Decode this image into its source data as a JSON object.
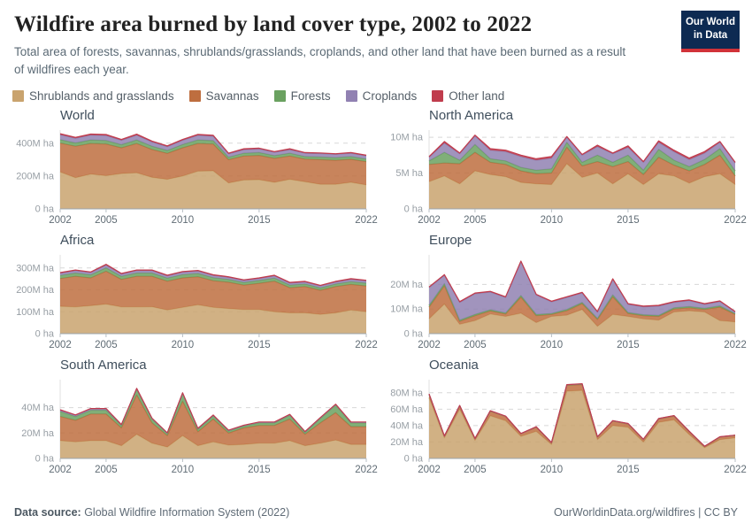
{
  "header": {
    "title": "Wildfire area burned by land cover type, 2002 to 2022",
    "subtitle": "Total area of forests, savannas, shrublands/grasslands, croplands, and other land that have been burned as a result of wildfires each year."
  },
  "logo": {
    "line1": "Our World",
    "line2": "in Data",
    "bg_color": "#0d2a52",
    "stripe_color": "#d13239"
  },
  "legend": {
    "items": [
      {
        "label": "Shrublands and grasslands",
        "color": "#C9A36E"
      },
      {
        "label": "Savannas",
        "color": "#BE6E3F"
      },
      {
        "label": "Forests",
        "color": "#6AA160"
      },
      {
        "label": "Croplands",
        "color": "#9181B2"
      },
      {
        "label": "Other land",
        "color": "#C03C4D"
      }
    ]
  },
  "footer": {
    "left_bold": "Data source:",
    "left_rest": " Global Wildfire Information System (2022)",
    "right": "OurWorldinData.org/wildfires | CC BY"
  },
  "chart_data": {
    "type": "area",
    "stacked": true,
    "unit": "M ha",
    "grid": "dashed horizontal",
    "legend_position": "top",
    "series_order": [
      "shrublands",
      "savannas",
      "forests",
      "croplands",
      "other_land"
    ],
    "series_labels": {
      "shrublands": "Shrublands and grasslands",
      "savannas": "Savannas",
      "forests": "Forests",
      "croplands": "Croplands",
      "other_land": "Other land"
    },
    "colors": {
      "shrublands": "#C9A36E",
      "savannas": "#BE6E3F",
      "forests": "#6AA160",
      "croplands": "#9181B2",
      "other_land": "#C03C4D"
    },
    "years": [
      2002,
      2003,
      2004,
      2005,
      2006,
      2007,
      2008,
      2009,
      2010,
      2011,
      2012,
      2013,
      2014,
      2015,
      2016,
      2017,
      2018,
      2019,
      2020,
      2021,
      2022
    ],
    "charts": [
      {
        "id": "world",
        "title": "World",
        "ymax": 480,
        "yticks": [
          {
            "v": 0,
            "label": "0 ha"
          },
          {
            "v": 200,
            "label": "200M ha"
          },
          {
            "v": 400,
            "label": "400M ha"
          }
        ],
        "xticks": [
          {
            "v": 2002,
            "label": "2002"
          },
          {
            "v": 2005,
            "label": "2005"
          },
          {
            "v": 2010,
            "label": "2010"
          },
          {
            "v": 2015,
            "label": "2015"
          },
          {
            "v": 2022,
            "label": "2022"
          }
        ],
        "series": {
          "shrublands": [
            225,
            190,
            212,
            202,
            215,
            220,
            192,
            180,
            200,
            230,
            232,
            158,
            176,
            178,
            162,
            180,
            165,
            150,
            150,
            162,
            146
          ],
          "savannas": [
            175,
            192,
            186,
            193,
            157,
            178,
            170,
            158,
            172,
            168,
            163,
            142,
            146,
            148,
            146,
            142,
            138,
            150,
            146,
            140,
            142
          ],
          "forests": [
            22,
            20,
            22,
            22,
            19,
            22,
            20,
            18,
            20,
            22,
            21,
            15,
            17,
            17,
            16,
            17,
            16,
            16,
            16,
            17,
            16
          ],
          "croplands": [
            30,
            28,
            30,
            30,
            27,
            29,
            26,
            23,
            26,
            28,
            27,
            20,
            22,
            22,
            21,
            22,
            20,
            21,
            20,
            20,
            19
          ],
          "other_land": [
            6,
            6,
            6,
            6,
            5,
            6,
            5,
            5,
            5,
            6,
            5,
            4,
            5,
            5,
            4,
            5,
            4,
            4,
            4,
            4,
            4
          ]
        }
      },
      {
        "id": "north-america",
        "title": "North America",
        "ymax": 11,
        "yticks": [
          {
            "v": 0,
            "label": "0 ha"
          },
          {
            "v": 5,
            "label": "5M ha"
          },
          {
            "v": 10,
            "label": "10M ha"
          }
        ],
        "xticks": [
          {
            "v": 2002,
            "label": "2002"
          },
          {
            "v": 2005,
            "label": "2005"
          },
          {
            "v": 2010,
            "label": "2010"
          },
          {
            "v": 2015,
            "label": "2015"
          },
          {
            "v": 2022,
            "label": "2022"
          }
        ],
        "series": {
          "shrublands": [
            3.8,
            4.6,
            3.5,
            5.3,
            4.8,
            4.5,
            3.7,
            3.5,
            3.4,
            6.3,
            4.4,
            5.0,
            3.5,
            4.9,
            3.4,
            4.9,
            4.6,
            3.6,
            4.5,
            4.9,
            3.4
          ],
          "savannas": [
            2.4,
            1.8,
            2.8,
            2.6,
            1.7,
            1.7,
            1.6,
            1.4,
            1.6,
            2.3,
            1.6,
            1.6,
            2.4,
            1.7,
            1.4,
            2.3,
            1.5,
            1.7,
            1.7,
            2.6,
            1.2
          ],
          "forests": [
            0.5,
            1.5,
            0.5,
            1.1,
            0.5,
            0.5,
            0.5,
            0.5,
            0.6,
            0.7,
            0.5,
            0.9,
            0.6,
            0.9,
            0.6,
            1.1,
            0.7,
            0.6,
            0.7,
            0.9,
            0.7
          ],
          "croplands": [
            0.5,
            1.3,
            0.9,
            1.2,
            1.2,
            1.3,
            1.5,
            1.4,
            1.5,
            0.7,
            1.0,
            1.2,
            1.2,
            1.1,
            1.1,
            1.0,
            1.2,
            1.0,
            0.9,
            0.9,
            1.1
          ],
          "other_land": [
            0.1,
            0.2,
            0.1,
            0.1,
            0.2,
            0.2,
            0.2,
            0.2,
            0.2,
            0.1,
            0.1,
            0.2,
            0.1,
            0.2,
            0.1,
            0.2,
            0.2,
            0.2,
            0.2,
            0.1,
            0.1
          ]
        }
      },
      {
        "id": "africa",
        "title": "Africa",
        "ymax": 360,
        "yticks": [
          {
            "v": 0,
            "label": "0 ha"
          },
          {
            "v": 100,
            "label": "100M ha"
          },
          {
            "v": 200,
            "label": "200M ha"
          },
          {
            "v": 300,
            "label": "300M ha"
          }
        ],
        "xticks": [
          {
            "v": 2002,
            "label": "2002"
          },
          {
            "v": 2005,
            "label": "2005"
          },
          {
            "v": 2010,
            "label": "2010"
          },
          {
            "v": 2015,
            "label": "2015"
          },
          {
            "v": 2022,
            "label": "2022"
          }
        ],
        "series": {
          "shrublands": [
            125,
            122,
            128,
            135,
            122,
            122,
            123,
            108,
            120,
            132,
            120,
            115,
            110,
            110,
            100,
            95,
            95,
            88,
            95,
            108,
            100
          ],
          "savannas": [
            127,
            140,
            127,
            150,
            126,
            140,
            139,
            132,
            135,
            128,
            122,
            120,
            112,
            120,
            140,
            115,
            120,
            110,
            120,
            117,
            118
          ],
          "forests": [
            14,
            15,
            14,
            16,
            14,
            15,
            15,
            14,
            15,
            15,
            14,
            13,
            12,
            13,
            14,
            12,
            12,
            11,
            12,
            13,
            13
          ],
          "croplands": [
            10,
            11,
            10,
            12,
            10,
            11,
            11,
            10,
            11,
            11,
            10,
            9,
            9,
            9,
            10,
            9,
            9,
            9,
            9,
            10,
            10
          ],
          "other_land": [
            3,
            3,
            3,
            4,
            3,
            3,
            3,
            3,
            3,
            3,
            3,
            3,
            3,
            3,
            3,
            3,
            3,
            3,
            3,
            3,
            3
          ]
        }
      },
      {
        "id": "europe",
        "title": "Europe",
        "ymax": 32,
        "yticks": [
          {
            "v": 0,
            "label": "0 ha"
          },
          {
            "v": 10,
            "label": "10M ha"
          },
          {
            "v": 20,
            "label": "20M ha"
          }
        ],
        "xticks": [
          {
            "v": 2002,
            "label": "2002"
          },
          {
            "v": 2005,
            "label": "2005"
          },
          {
            "v": 2010,
            "label": "2010"
          },
          {
            "v": 2015,
            "label": "2015"
          },
          {
            "v": 2022,
            "label": "2022"
          }
        ],
        "series": {
          "shrublands": [
            6,
            12,
            3.8,
            5.3,
            8,
            7,
            8.3,
            4.5,
            7,
            7.5,
            9.8,
            3,
            7.8,
            7,
            6,
            5.5,
            8.8,
            9.3,
            8.8,
            5.3,
            4.8
          ],
          "savannas": [
            4.8,
            7.5,
            1.2,
            2,
            1.2,
            1,
            6.5,
            2.8,
            0.8,
            1.8,
            2.4,
            2.8,
            7.2,
            1.2,
            1.3,
            1.5,
            1.2,
            1.2,
            1.0,
            5.5,
            3.0
          ],
          "forests": [
            0.7,
            0.8,
            0.5,
            0.5,
            0.5,
            0.4,
            0.7,
            0.5,
            0.4,
            0.5,
            0.5,
            0.4,
            0.8,
            0.4,
            0.4,
            0.4,
            0.5,
            0.5,
            0.5,
            0.5,
            0.4
          ],
          "croplands": [
            7.2,
            3.4,
            7.2,
            8.4,
            7.2,
            6.3,
            13.7,
            7.9,
            4.7,
            4.9,
            3.8,
            2.5,
            6.2,
            3.3,
            3.2,
            3.8,
            2.2,
            2.4,
            1.6,
            1.7,
            0.6
          ],
          "other_land": [
            0.3,
            0.3,
            0.3,
            0.3,
            0.3,
            0.3,
            0.3,
            0.3,
            0.3,
            0.3,
            0.3,
            0.3,
            0.3,
            0.3,
            0.3,
            0.3,
            0.3,
            0.3,
            0.3,
            0.3,
            0.2
          ]
        }
      },
      {
        "id": "south-america",
        "title": "South America",
        "ymax": 62,
        "yticks": [
          {
            "v": 0,
            "label": "0 ha"
          },
          {
            "v": 20,
            "label": "20M ha"
          },
          {
            "v": 40,
            "label": "40M ha"
          }
        ],
        "xticks": [
          {
            "v": 2002,
            "label": "2002"
          },
          {
            "v": 2005,
            "label": "2005"
          },
          {
            "v": 2010,
            "label": "2010"
          },
          {
            "v": 2015,
            "label": "2015"
          },
          {
            "v": 2022,
            "label": "2022"
          }
        ],
        "series": {
          "shrublands": [
            14,
            13,
            14,
            14,
            10,
            19,
            12,
            9,
            18,
            10,
            13,
            10.5,
            11,
            12,
            12,
            14,
            10,
            12,
            14.5,
            11,
            11
          ],
          "savannas": [
            19,
            17,
            21,
            21,
            14,
            31,
            16,
            9,
            27,
            11,
            18,
            9.5,
            13,
            14,
            14,
            17,
            9,
            16,
            21.5,
            14,
            14
          ],
          "forests": [
            4,
            3,
            3,
            3,
            2,
            4.5,
            3,
            1.5,
            6,
            2,
            2.5,
            1.5,
            1.5,
            2,
            2,
            3,
            1.5,
            3.5,
            6,
            3,
            3
          ],
          "croplands": [
            1,
            1,
            1,
            1,
            0.5,
            0.5,
            0.5,
            0.5,
            0.5,
            0.5,
            0.5,
            0.5,
            0.5,
            0.5,
            0.5,
            0.5,
            0.5,
            0.5,
            0.5,
            0.5,
            0.5
          ],
          "other_land": [
            0.3,
            0.3,
            0.3,
            0.3,
            0.2,
            0.2,
            0.2,
            0.2,
            0.2,
            0.2,
            0.2,
            0.2,
            0.2,
            0.2,
            0.2,
            0.2,
            0.2,
            0.2,
            0.2,
            0.2,
            0.2
          ]
        }
      },
      {
        "id": "oceania",
        "title": "Oceania",
        "ymax": 96,
        "yticks": [
          {
            "v": 0,
            "label": "0 ha"
          },
          {
            "v": 20,
            "label": "20M ha"
          },
          {
            "v": 40,
            "label": "40M ha"
          },
          {
            "v": 60,
            "label": "60M ha"
          },
          {
            "v": 80,
            "label": "80M ha"
          }
        ],
        "xticks": [
          {
            "v": 2002,
            "label": "2002"
          },
          {
            "v": 2005,
            "label": "2005"
          },
          {
            "v": 2010,
            "label": "2010"
          },
          {
            "v": 2015,
            "label": "2015"
          },
          {
            "v": 2022,
            "label": "2022"
          }
        ],
        "series": {
          "shrublands": [
            74,
            25,
            60,
            22,
            52,
            46,
            27,
            33,
            17,
            82,
            83,
            23,
            40,
            38,
            20,
            44,
            47,
            29,
            13,
            23,
            25
          ],
          "savannas": [
            4,
            2,
            4,
            2,
            5.5,
            5,
            3,
            5,
            2,
            7,
            7,
            3,
            5.5,
            4,
            3,
            4,
            4.5,
            3.5,
            1.5,
            3,
            3
          ],
          "forests": [
            0.3,
            0.2,
            0.3,
            0.2,
            0.3,
            0.3,
            0.2,
            0.3,
            0.2,
            0.5,
            0.5,
            0.2,
            0.3,
            0.3,
            0.2,
            0.3,
            0.4,
            0.3,
            0.2,
            0.2,
            0.2
          ],
          "croplands": [
            0.2,
            0.1,
            0.2,
            0.1,
            0.2,
            0.2,
            0.1,
            0.2,
            0.1,
            0.3,
            0.3,
            0.1,
            0.2,
            0.2,
            0.1,
            0.2,
            0.2,
            0.2,
            0.1,
            0.1,
            0.1
          ],
          "other_land": [
            0.1,
            0.1,
            0.1,
            0.1,
            0.1,
            0.1,
            0.1,
            0.1,
            0.1,
            0.2,
            0.2,
            0.1,
            0.1,
            0.1,
            0.1,
            0.1,
            0.1,
            0.1,
            0.1,
            0.1,
            0.1
          ]
        }
      }
    ]
  }
}
